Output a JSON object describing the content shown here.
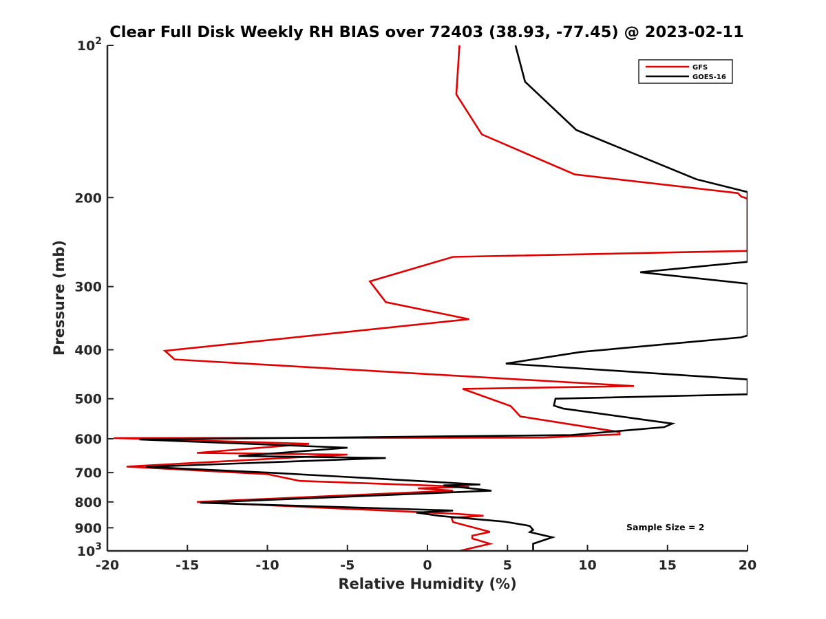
{
  "chart_data": {
    "type": "line",
    "title": "Clear Full Disk Weekly RH BIAS over 72403 (38.93, -77.45) @ 2023-02-11",
    "xlabel": "Relative Humidity (%)",
    "ylabel": "Pressure (mb)",
    "xlim": [
      -20,
      20
    ],
    "ylim": [
      100,
      1000
    ],
    "y_scale": "log",
    "y_reversed": true,
    "grid": false,
    "legend_position": "top-right",
    "annotation": "Sample Size = 2",
    "x_tick_labels": [
      "-20",
      "-15",
      "-10",
      "-5",
      "0",
      "5",
      "10",
      "15",
      "20"
    ],
    "y_tick_labels": [
      {
        "value": 100,
        "base": "10",
        "exp": "2"
      },
      {
        "value": 200,
        "base": "200",
        "exp": ""
      },
      {
        "value": 300,
        "base": "300",
        "exp": ""
      },
      {
        "value": 400,
        "base": "400",
        "exp": ""
      },
      {
        "value": 500,
        "base": "500",
        "exp": ""
      },
      {
        "value": 600,
        "base": "600",
        "exp": ""
      },
      {
        "value": 700,
        "base": "700",
        "exp": ""
      },
      {
        "value": 800,
        "base": "800",
        "exp": ""
      },
      {
        "value": 900,
        "base": "900",
        "exp": ""
      },
      {
        "value": 1000,
        "base": "10",
        "exp": "3"
      }
    ],
    "series": [
      {
        "name": "GFS",
        "color": "#e00000",
        "points": [
          [
            2.0,
            100
          ],
          [
            1.8,
            125
          ],
          [
            3.4,
            150
          ],
          [
            9.2,
            180
          ],
          [
            19.4,
            196
          ],
          [
            19.6,
            199
          ],
          [
            20.0,
            201
          ],
          [
            20.0,
            255
          ],
          [
            1.6,
            262
          ],
          [
            -3.6,
            293
          ],
          [
            -2.6,
            322
          ],
          [
            2.6,
            348
          ],
          [
            -16.4,
            402
          ],
          [
            -15.8,
            418
          ],
          [
            12.9,
            472
          ],
          [
            2.2,
            478
          ],
          [
            5.2,
            517
          ],
          [
            5.8,
            542
          ],
          [
            12.0,
            582
          ],
          [
            12.0,
            588
          ],
          [
            7.2,
            597
          ],
          [
            -19.6,
            598
          ],
          [
            -7.4,
            614
          ],
          [
            -14.4,
            640
          ],
          [
            -5.0,
            645
          ],
          [
            -18.8,
            681
          ],
          [
            -10.0,
            705
          ],
          [
            -8.0,
            727
          ],
          [
            2.6,
            747
          ],
          [
            -0.6,
            752
          ],
          [
            1.6,
            760
          ],
          [
            -14.4,
            800
          ],
          [
            1.9,
            845
          ],
          [
            3.5,
            852
          ],
          [
            1.5,
            860
          ],
          [
            1.6,
            877
          ],
          [
            3.9,
            917
          ],
          [
            2.8,
            933
          ],
          [
            2.8,
            945
          ],
          [
            3.9,
            968
          ],
          [
            2.0,
            1000
          ]
        ]
      },
      {
        "name": "GOES-16",
        "color": "#000000",
        "points": [
          [
            5.5,
            100
          ],
          [
            6.1,
            118
          ],
          [
            9.3,
            147
          ],
          [
            16.8,
            184
          ],
          [
            20.0,
            195
          ],
          [
            20.0,
            268
          ],
          [
            13.3,
            281
          ],
          [
            20.0,
            296
          ],
          [
            20.0,
            375
          ],
          [
            19.6,
            378
          ],
          [
            9.6,
            404
          ],
          [
            4.9,
            426
          ],
          [
            20.0,
            458
          ],
          [
            20.0,
            490
          ],
          [
            8.0,
            500
          ],
          [
            7.9,
            516
          ],
          [
            8.5,
            523
          ],
          [
            15.3,
            560
          ],
          [
            14.8,
            569
          ],
          [
            9.0,
            590
          ],
          [
            -18.0,
            602
          ],
          [
            -5.0,
            625
          ],
          [
            -11.8,
            649
          ],
          [
            -2.6,
            655
          ],
          [
            -17.6,
            682
          ],
          [
            -10.0,
            700
          ],
          [
            -3.6,
            718
          ],
          [
            3.3,
            739
          ],
          [
            1.0,
            742
          ],
          [
            4.0,
            760
          ],
          [
            -14.2,
            803
          ],
          [
            1.6,
            832
          ],
          [
            -0.7,
            840
          ],
          [
            0.8,
            853
          ],
          [
            4.8,
            875
          ],
          [
            6.2,
            890
          ],
          [
            6.4,
            893
          ],
          [
            6.6,
            909
          ],
          [
            6.4,
            918
          ],
          [
            7.8,
            940
          ],
          [
            6.6,
            968
          ],
          [
            6.6,
            1000
          ]
        ]
      }
    ]
  }
}
